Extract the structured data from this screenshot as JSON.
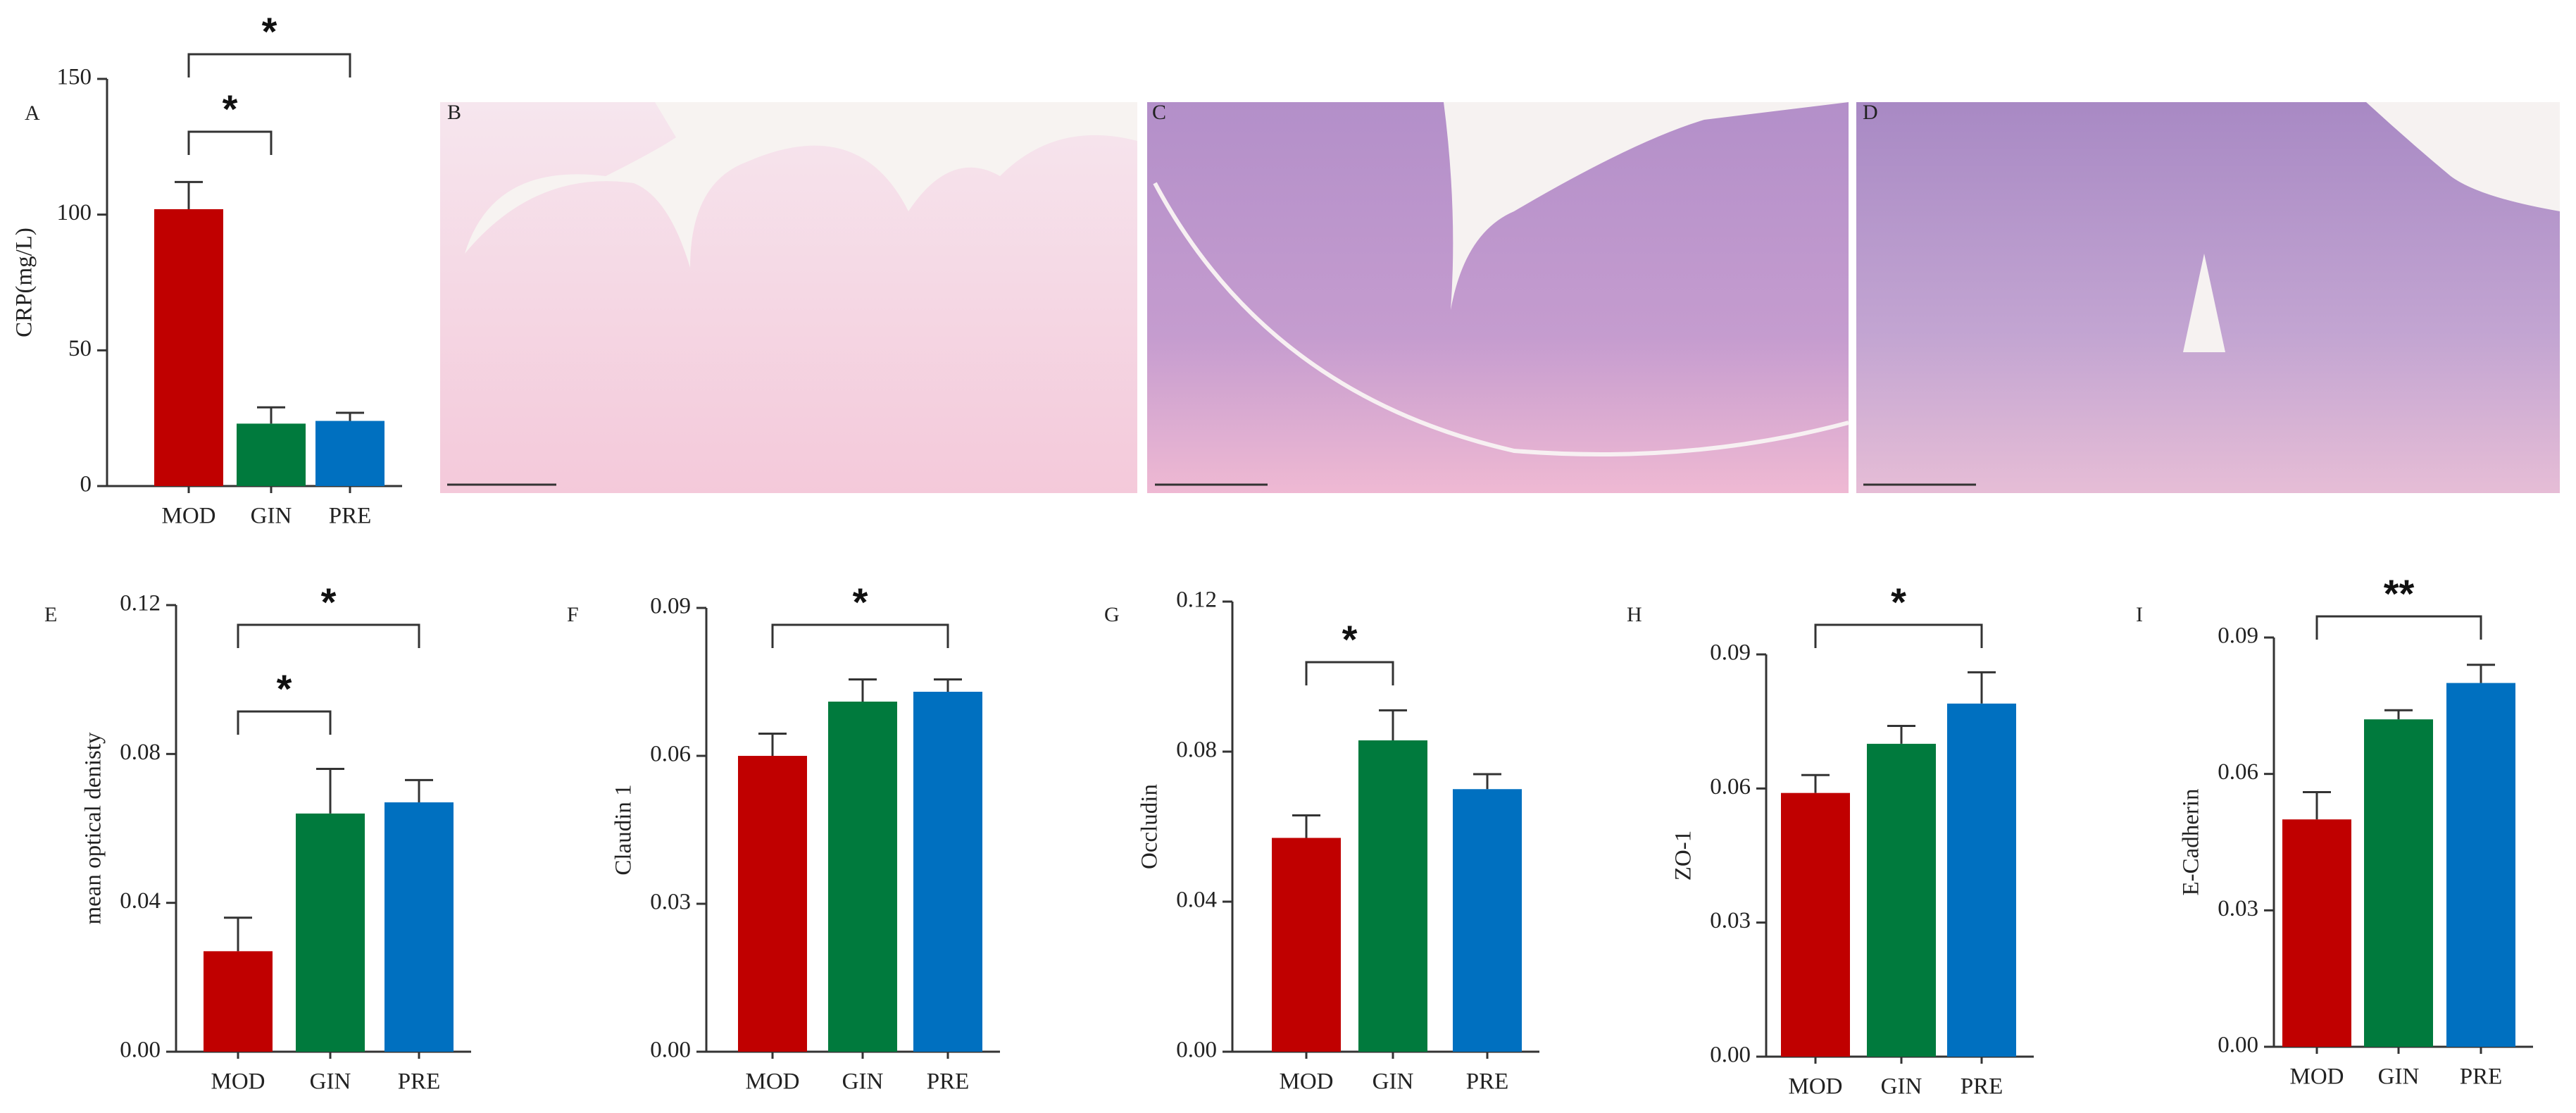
{
  "chart_data": [
    {
      "type": "bar",
      "panel": "A",
      "ylabel": "CRP(mg/L)",
      "categories": [
        "MOD",
        "GIN",
        "PRE"
      ],
      "values": [
        102,
        23,
        24
      ],
      "errors": [
        10,
        6,
        3
      ],
      "colors": [
        "#c00000",
        "#007a3d",
        "#0070c0"
      ],
      "ylim": [
        0,
        150
      ],
      "yticks": [
        0,
        50,
        100,
        150
      ],
      "brackets": [
        {
          "between": [
            "MOD",
            "GIN"
          ],
          "label": "*"
        },
        {
          "between": [
            "MOD",
            "PRE"
          ],
          "label": "*"
        }
      ]
    },
    {
      "type": "bar",
      "panel": "E",
      "ylabel": "mean optical denisty",
      "categories": [
        "MOD",
        "GIN",
        "PRE"
      ],
      "values": [
        0.027,
        0.064,
        0.067
      ],
      "errors": [
        0.009,
        0.012,
        0.006
      ],
      "colors": [
        "#c00000",
        "#007a3d",
        "#0070c0"
      ],
      "ylim": [
        0,
        0.12
      ],
      "yticks": [
        {
          "value": 0,
          "label": "0.00"
        },
        {
          "value": 0.04,
          "label": "0.04"
        },
        {
          "value": 0.08,
          "label": "0.08"
        },
        {
          "value": 0.12,
          "label": "0.12"
        }
      ],
      "brackets": [
        {
          "between": [
            "MOD",
            "GIN"
          ],
          "label": "*"
        },
        {
          "between": [
            "MOD",
            "PRE"
          ],
          "label": "*"
        }
      ]
    },
    {
      "type": "bar",
      "panel": "F",
      "ylabel": "Claudin 1",
      "categories": [
        "MOD",
        "GIN",
        "PRE"
      ],
      "values": [
        0.06,
        0.071,
        0.073
      ],
      "errors": [
        0.0045,
        0.0045,
        0.0025
      ],
      "colors": [
        "#c00000",
        "#007a3d",
        "#0070c0"
      ],
      "ylim": [
        0,
        0.09
      ],
      "yticks": [
        {
          "value": 0,
          "label": "0.00"
        },
        {
          "value": 0.03,
          "label": "0.03"
        },
        {
          "value": 0.06,
          "label": "0.06"
        },
        {
          "value": 0.09,
          "label": "0.09"
        }
      ],
      "brackets": [
        {
          "between": [
            "MOD",
            "PRE"
          ],
          "label": "*"
        }
      ]
    },
    {
      "type": "bar",
      "panel": "G",
      "ylabel": "Occludin",
      "categories": [
        "MOD",
        "GIN",
        "PRE"
      ],
      "values": [
        0.057,
        0.083,
        0.07
      ],
      "errors": [
        0.006,
        0.008,
        0.004
      ],
      "colors": [
        "#c00000",
        "#007a3d",
        "#0070c0"
      ],
      "ylim": [
        0,
        0.12
      ],
      "yticks": [
        {
          "value": 0,
          "label": "0.00"
        },
        {
          "value": 0.04,
          "label": "0.04"
        },
        {
          "value": 0.08,
          "label": "0.08"
        },
        {
          "value": 0.12,
          "label": "0.12"
        }
      ],
      "brackets": [
        {
          "between": [
            "MOD",
            "GIN"
          ],
          "label": "*"
        }
      ]
    },
    {
      "type": "bar",
      "panel": "H",
      "ylabel": "ZO-1",
      "categories": [
        "MOD",
        "GIN",
        "PRE"
      ],
      "values": [
        0.059,
        0.07,
        0.079
      ],
      "errors": [
        0.004,
        0.004,
        0.007
      ],
      "colors": [
        "#c00000",
        "#007a3d",
        "#0070c0"
      ],
      "ylim": [
        0,
        0.09
      ],
      "yticks": [
        {
          "value": 0,
          "label": "0.00"
        },
        {
          "value": 0.03,
          "label": "0.03"
        },
        {
          "value": 0.06,
          "label": "0.06"
        },
        {
          "value": 0.09,
          "label": "0.09"
        }
      ],
      "brackets": [
        {
          "between": [
            "MOD",
            "PRE"
          ],
          "label": "*"
        }
      ]
    },
    {
      "type": "bar",
      "panel": "I",
      "ylabel": "E-Cadherin",
      "categories": [
        "MOD",
        "GIN",
        "PRE"
      ],
      "values": [
        0.05,
        0.072,
        0.08
      ],
      "errors": [
        0.006,
        0.002,
        0.004
      ],
      "colors": [
        "#c00000",
        "#007a3d",
        "#0070c0"
      ],
      "ylim": [
        0,
        0.09
      ],
      "yticks": [
        {
          "value": 0,
          "label": "0.00"
        },
        {
          "value": 0.03,
          "label": "0.03"
        },
        {
          "value": 0.06,
          "label": "0.06"
        },
        {
          "value": 0.09,
          "label": "0.09"
        }
      ],
      "brackets": [
        {
          "between": [
            "MOD",
            "PRE"
          ],
          "label": "**"
        }
      ]
    }
  ],
  "images": [
    {
      "label": "B"
    },
    {
      "label": "C"
    },
    {
      "label": "D"
    }
  ]
}
